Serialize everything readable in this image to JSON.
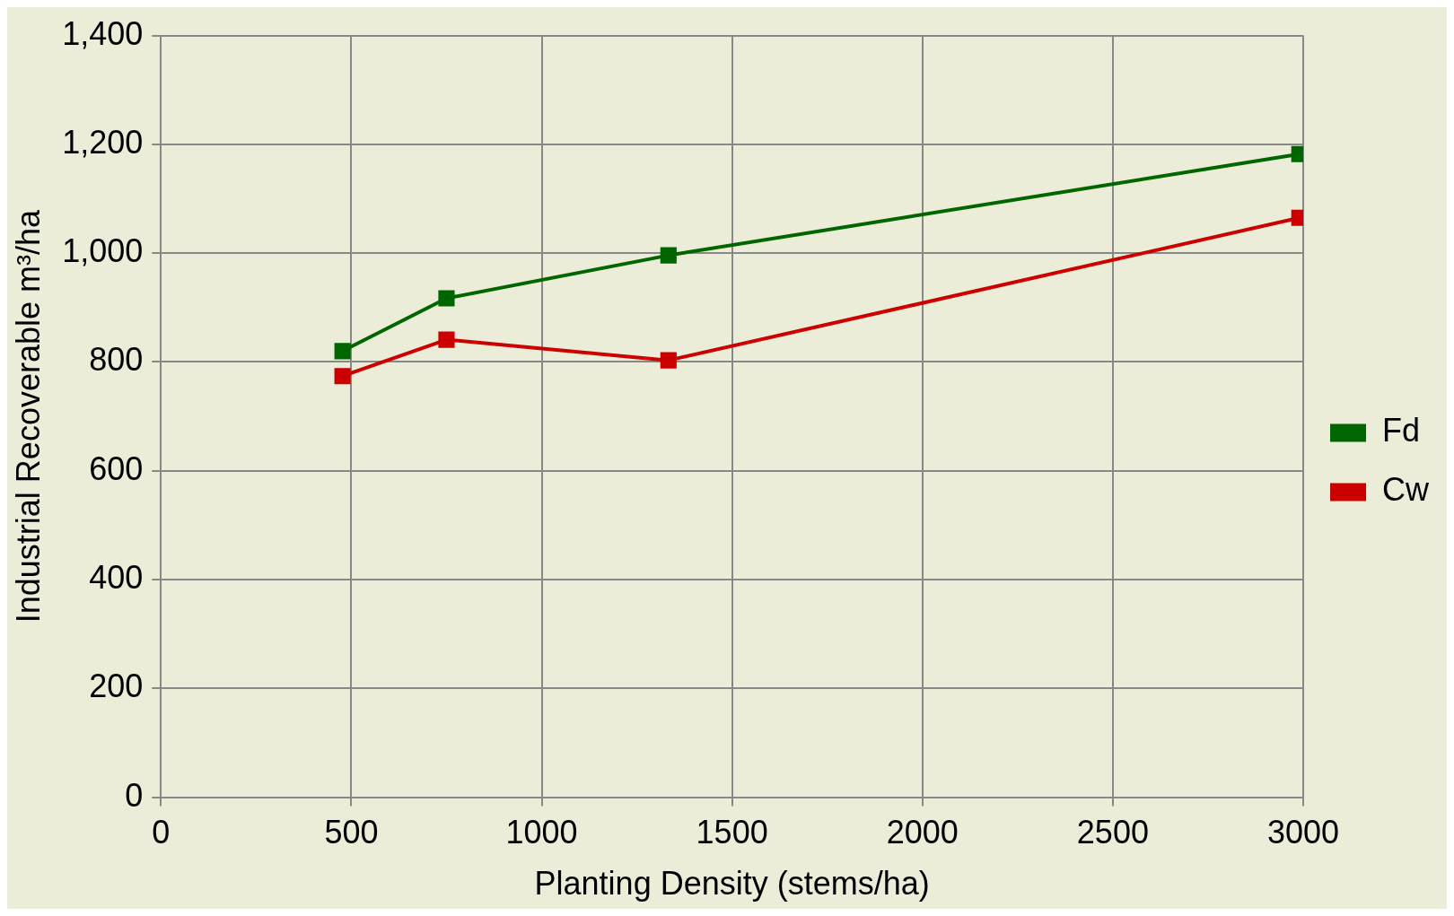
{
  "chart_data": {
    "type": "line",
    "xlabel": "Planting Density (stems/ha)",
    "ylabel": "Industrial Recoverable m³/ha",
    "x": [
      477,
      750,
      1333,
      2990
    ],
    "series": [
      {
        "name": "Fd",
        "color": "#006600",
        "values": [
          820,
          917,
          996,
          1182
        ]
      },
      {
        "name": "Cw",
        "color": "#cc0000",
        "values": [
          774,
          841,
          803,
          1065
        ]
      }
    ],
    "xlim": [
      0,
      3000
    ],
    "xticks": [
      0,
      500,
      1000,
      1500,
      2000,
      2500,
      3000
    ],
    "ylim": [
      0,
      1400
    ],
    "yticks": [
      0,
      {
        "value": 200,
        "label": "200"
      },
      {
        "value": 400,
        "label": "400"
      },
      {
        "value": 600,
        "label": "600"
      },
      {
        "value": 800,
        "label": "800"
      },
      {
        "value": 1000,
        "label": "1,000"
      },
      {
        "value": 1200,
        "label": "1,200"
      },
      {
        "value": 1400,
        "label": "1,400"
      }
    ],
    "grid": true,
    "legend": "right",
    "marker": "square",
    "line_style": "solid"
  }
}
